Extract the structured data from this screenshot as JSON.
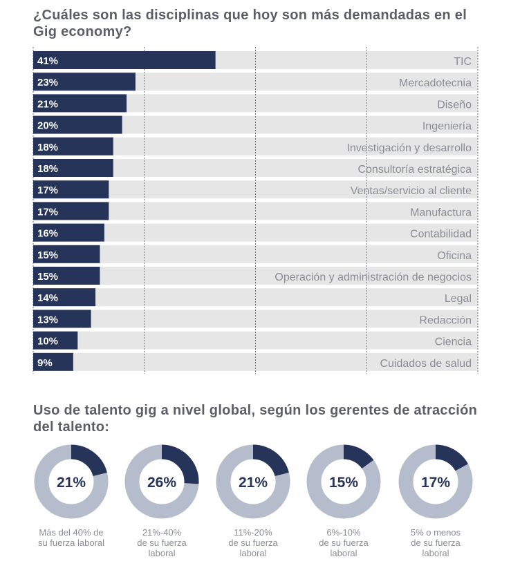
{
  "section1": {
    "title": "¿Cuáles son las disciplinas que hoy son más demandadas en el Gig economy?"
  },
  "section2": {
    "title": "Uso de talento gig a nivel global, según los gerentes de atracción del talento:"
  },
  "colors": {
    "bar": "#263459",
    "track": "#e6e6e6",
    "donut_fill": "#263459",
    "donut_rest": "#b5bccc",
    "label": "#8a8d95",
    "title": "#5b5e66"
  },
  "chart_data": [
    {
      "type": "bar",
      "orientation": "horizontal",
      "title": "¿Cuáles son las disciplinas que hoy son más demandadas en el Gig economy?",
      "categories": [
        "TIC",
        "Mercadotecnia",
        "Diseño",
        "Ingeniería",
        "Investigación y desarrollo",
        "Consultoría estratégica",
        "Ventas/servicio al cliente",
        "Manufactura",
        "Contabilidad",
        "Oficina",
        "Operación y administración de negocios",
        "Legal",
        "Redacción",
        "Ciencia",
        "Cuidados de salud"
      ],
      "values": [
        41,
        23,
        21,
        20,
        18,
        18,
        17,
        17,
        16,
        15,
        15,
        14,
        13,
        10,
        9
      ],
      "value_labels": [
        "41%",
        "23%",
        "21%",
        "20%",
        "18%",
        "18%",
        "17%",
        "17%",
        "16%",
        "15%",
        "15%",
        "14%",
        "13%",
        "10%",
        "9%"
      ],
      "unit": "%",
      "xlim": [
        0,
        100
      ],
      "grid": true
    },
    {
      "type": "pie",
      "style": "donut",
      "title": "Uso de talento gig a nivel global, según los gerentes de atracción del talento:",
      "categories": [
        "Más del 40% de su fuerza laboral",
        "21%-40% de su fuerza laboral",
        "11%-20% de su fuerza laboral",
        "6%-10% de su fuerza laboral",
        "5% o menos de su fuerza laboral"
      ],
      "values": [
        21,
        26,
        21,
        15,
        17
      ],
      "value_labels": [
        "21%",
        "26%",
        "21%",
        "15%",
        "17%"
      ],
      "captions": [
        [
          "Más del 40% de",
          "su fuerza laboral"
        ],
        [
          "21%-40%",
          "de su fuerza",
          "laboral"
        ],
        [
          "11%-20%",
          "de su fuerza",
          "laboral"
        ],
        [
          "6%-10%",
          "de su fuerza",
          "laboral"
        ],
        [
          "5% o menos",
          "de su fuerza",
          "laboral"
        ]
      ]
    }
  ]
}
